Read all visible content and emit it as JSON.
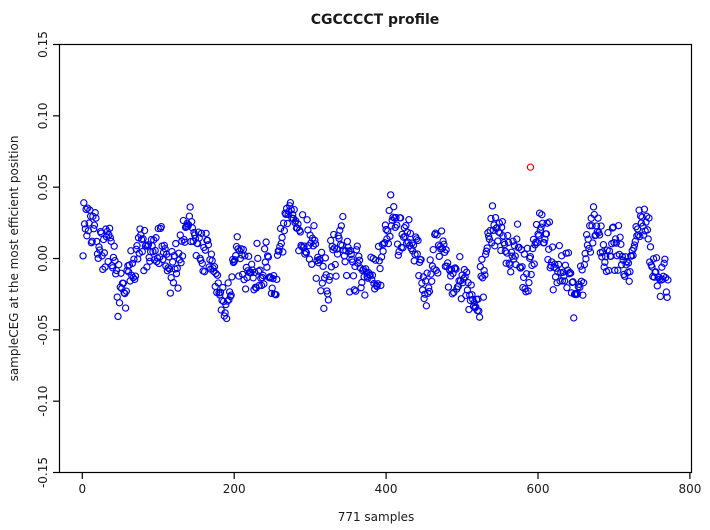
{
  "title": "CGCCCCT profile",
  "colors": {
    "background": "#FFFFFF",
    "point": "#0000EE",
    "outlier": "#EE0000",
    "axis": "#000000",
    "text": "#1A1A1A"
  },
  "chart_data": {
    "type": "scatter",
    "title": "CGCCCCT profile",
    "xlabel": "771 samples",
    "ylabel": "sampleCEG at the most efficient position",
    "n_points": 771,
    "x_is_sample_index": true,
    "x_range": [
      1,
      771
    ],
    "xlim": [
      -30,
      802
    ],
    "ylim": [
      -0.15,
      0.15
    ],
    "xticks": [
      0,
      200,
      400,
      600,
      800
    ],
    "xtick_labels": [
      "0",
      "200",
      "400",
      "600",
      "800"
    ],
    "yticks": [
      -0.15,
      -0.1,
      -0.05,
      0.0,
      0.05,
      0.1,
      0.15
    ],
    "ytick_labels": [
      "-0.15",
      "-0.10",
      "-0.05",
      "0.00",
      "0.05",
      "0.10",
      "0.15"
    ],
    "grid": false,
    "legend": null,
    "point_style": "open-circle",
    "point_radius_px": 3.1,
    "observed_y_extent": [
      -0.057,
      0.058
    ],
    "band_description": "blue open circles oscillating in a noisy wave band around y=0, mostly between -0.05 and 0.05",
    "outlier": {
      "x": 590,
      "y": 0.064
    },
    "synthesis": {
      "seed": 7,
      "waves": [
        {
          "amp": 0.014,
          "period": 10.5,
          "phase": 0.0
        },
        {
          "amp": 0.012,
          "period": 23.0,
          "phase": 2.0
        },
        {
          "amp": 0.008,
          "period": 5.3,
          "phase": 0.7
        },
        {
          "amp": 0.005,
          "period": 49.0,
          "phase": 0.9
        }
      ],
      "noise_amp": 0.022,
      "clip": [
        -0.0585,
        0.0585
      ]
    }
  }
}
